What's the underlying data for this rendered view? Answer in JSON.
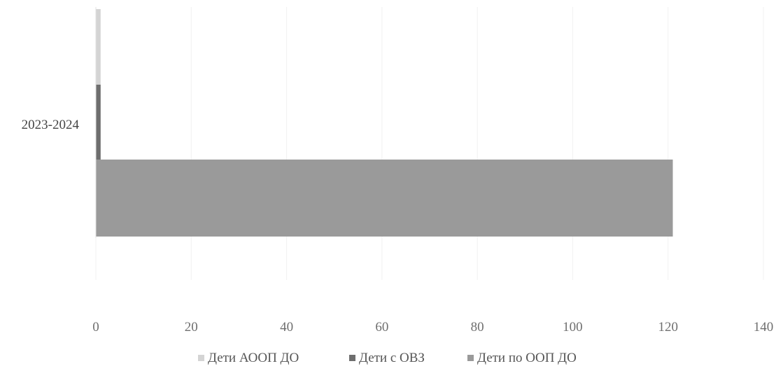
{
  "chart_data": {
    "type": "bar",
    "orientation": "horizontal",
    "categories": [
      "2023-2024"
    ],
    "series": [
      {
        "name": "Дети АООП ДО",
        "values": [
          1
        ],
        "color": "#d4d4d4"
      },
      {
        "name": "Дети с ОВЗ",
        "values": [
          1
        ],
        "color": "#6e6e6e"
      },
      {
        "name": "Дети по ООП ДО",
        "values": [
          121
        ],
        "color": "#9a9a9a"
      }
    ],
    "xlim": [
      0,
      140
    ],
    "xticks": [
      "0",
      "20",
      "40",
      "60",
      "80",
      "100",
      "120",
      "140"
    ],
    "title": "",
    "xlabel": "",
    "ylabel": "",
    "grid": "vertical",
    "legend_position": "bottom"
  }
}
